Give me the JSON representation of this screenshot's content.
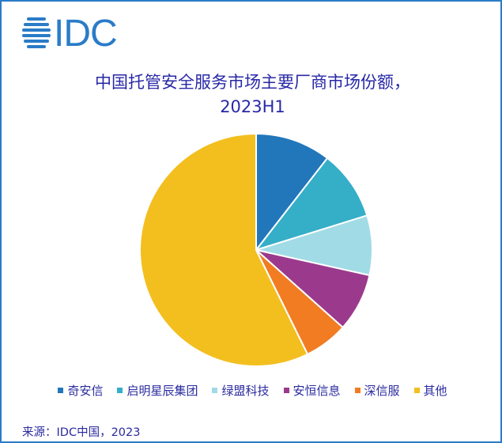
{
  "logo": {
    "text": "IDC",
    "color": "#2a7cc7"
  },
  "title": {
    "line1": "中国托管安全服务市场主要厂商市场份额，",
    "line2": "2023H1"
  },
  "source": "来源：IDC中国，2023",
  "colors": {
    "frame_border": "#2a7cc7",
    "title_text": "#2828a8"
  },
  "chart_data": {
    "type": "pie",
    "title": "中国托管安全服务市场主要厂商市场份额，2023H1",
    "categories": [
      "奇安信",
      "启明星辰集团",
      "绿盟科技",
      "安恒信息",
      "深信服",
      "其他"
    ],
    "values": [
      10.5,
      9.7,
      8.3,
      8.1,
      6.1,
      57.3
    ],
    "unit": "%",
    "colors": [
      "#2277bb",
      "#35aec8",
      "#a1dbe6",
      "#9b3a8c",
      "#f17c22",
      "#f3bf1f"
    ],
    "start_angle_deg": 0,
    "direction": "clockwise",
    "legend_position": "bottom",
    "data_labels": false,
    "note": "Values estimated from slice angles; no numeric labels shown"
  },
  "legend": [
    {
      "label": "奇安信",
      "color": "#2277bb"
    },
    {
      "label": "启明星辰集团",
      "color": "#35aec8"
    },
    {
      "label": "绿盟科技",
      "color": "#a1dbe6"
    },
    {
      "label": "安恒信息",
      "color": "#9b3a8c"
    },
    {
      "label": "深信服",
      "color": "#f17c22"
    },
    {
      "label": "其他",
      "color": "#f3bf1f"
    }
  ]
}
